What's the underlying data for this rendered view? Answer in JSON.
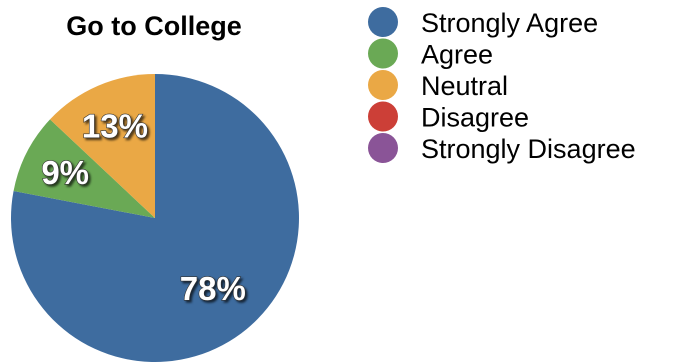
{
  "chart_data": {
    "type": "pie",
    "title": "Go to College",
    "categories": [
      "Strongly Agree",
      "Agree",
      "Neutral",
      "Disagree",
      "Strongly Disagree"
    ],
    "values": [
      78,
      9,
      13,
      0,
      0
    ],
    "labels": [
      "78%",
      "9%",
      "13%",
      "",
      ""
    ],
    "colors": [
      "#3e6c9f",
      "#6aa955",
      "#eaa845",
      "#cc3f37",
      "#8a5497"
    ],
    "legend_position": "right"
  }
}
